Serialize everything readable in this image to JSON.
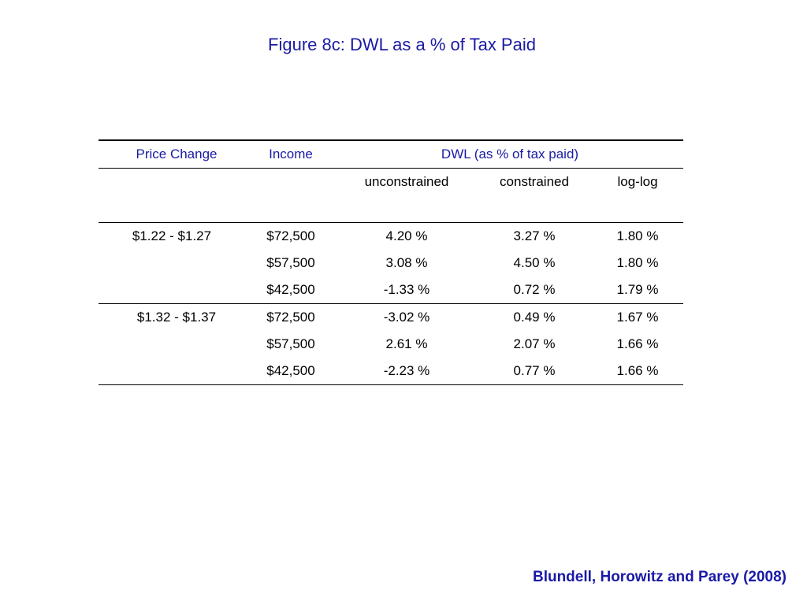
{
  "title": "Figure 8c: DWL as a % of Tax Paid",
  "table": {
    "headers": {
      "price_change": "Price Change",
      "income": "Income",
      "dwl": "DWL (as % of tax paid)"
    },
    "subheaders": {
      "unconstrained": "unconstrained",
      "constrained": "constrained",
      "loglog": "log-log"
    },
    "rows": [
      {
        "price": "$1.22 - $1.27",
        "income": "$72,500",
        "unconstrained": "4.20 %",
        "constrained": "3.27 %",
        "loglog": "1.80 %"
      },
      {
        "price": "",
        "income": "$57,500",
        "unconstrained": "3.08 %",
        "constrained": "4.50 %",
        "loglog": "1.80 %"
      },
      {
        "price": "",
        "income": "$42,500",
        "unconstrained": "-1.33 %",
        "constrained": "0.72 %",
        "loglog": "1.79 %"
      },
      {
        "price": "$1.32 - $1.37",
        "income": "$72,500",
        "unconstrained": "-3.02 %",
        "constrained": "0.49 %",
        "loglog": "1.67 %"
      },
      {
        "price": "",
        "income": "$57,500",
        "unconstrained": "2.61 %",
        "constrained": "2.07 %",
        "loglog": "1.66 %"
      },
      {
        "price": "",
        "income": "$42,500",
        "unconstrained": "-2.23 %",
        "constrained": "0.77 %",
        "loglog": "1.66 %"
      }
    ]
  },
  "citation": "Blundell, Horowitz and Parey (2008)",
  "colors": {
    "accent": "#1a1aa6",
    "text": "#000000",
    "background": "#ffffff"
  }
}
